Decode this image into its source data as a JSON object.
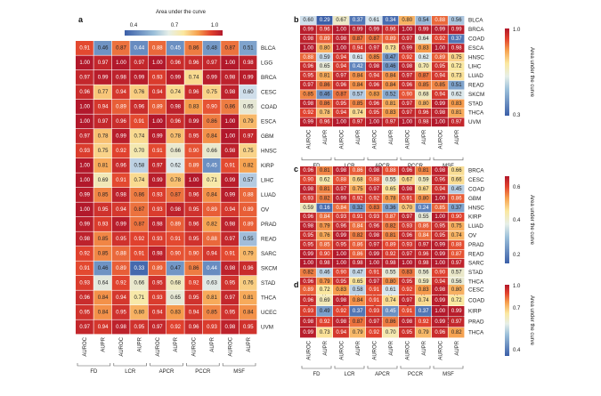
{
  "colors": {
    "scale": [
      "#3b5fa8",
      "#7fa3cc",
      "#dce8ef",
      "#fae8a0",
      "#f6a04e",
      "#e2432e",
      "#b2182b"
    ]
  },
  "groups": [
    "FD",
    "LCR",
    "APCR",
    "PCCR",
    "MSF"
  ],
  "metrics": [
    "AUROC",
    "AUPR"
  ],
  "chart_data": [
    {
      "panel": "a",
      "type": "heatmap",
      "colorbar": {
        "title": "Area under the curve",
        "ticks": [
          "0.4",
          "0.7",
          "1.0"
        ],
        "range": [
          0.3,
          1.0
        ],
        "orientation": "horizontal",
        "position": "top"
      },
      "rows": [
        "BLCA",
        "LGG",
        "BRCA",
        "CESC",
        "COAD",
        "ESCA",
        "GBM",
        "HNSC",
        "KIRP",
        "LIHC",
        "LUAD",
        "OV",
        "PRAD",
        "READ",
        "SARC",
        "SKCM",
        "STAD",
        "THCA",
        "UCEC",
        "UVM"
      ],
      "values": [
        [
          0.91,
          0.46,
          0.87,
          0.44,
          0.88,
          0.45,
          0.86,
          0.48,
          0.87,
          0.51
        ],
        [
          1.0,
          0.97,
          1.0,
          0.97,
          1.0,
          0.96,
          0.96,
          0.97,
          1.0,
          0.98
        ],
        [
          0.97,
          0.99,
          0.98,
          0.99,
          0.93,
          0.99,
          0.74,
          0.99,
          0.98,
          0.99
        ],
        [
          0.96,
          0.77,
          0.94,
          0.76,
          0.94,
          0.74,
          0.96,
          0.75,
          0.98,
          0.6
        ],
        [
          1.0,
          0.94,
          0.89,
          0.96,
          0.89,
          0.98,
          0.83,
          0.9,
          0.86,
          0.65
        ],
        [
          1.0,
          0.97,
          0.96,
          0.91,
          1.0,
          0.96,
          0.99,
          0.86,
          1.0,
          0.79
        ],
        [
          0.97,
          0.78,
          0.99,
          0.74,
          0.99,
          0.78,
          0.95,
          0.84,
          1.0,
          0.97
        ],
        [
          0.93,
          0.75,
          0.92,
          0.7,
          0.91,
          0.66,
          0.9,
          0.66,
          0.98,
          0.75
        ],
        [
          1.0,
          0.81,
          0.96,
          0.58,
          0.97,
          0.62,
          0.89,
          0.45,
          0.91,
          0.82
        ],
        [
          1.0,
          0.69,
          0.91,
          0.74,
          0.99,
          0.78,
          1.0,
          0.71,
          0.99,
          0.57
        ],
        [
          0.99,
          0.85,
          0.98,
          0.86,
          0.93,
          0.87,
          0.96,
          0.84,
          0.99,
          0.88
        ],
        [
          1.0,
          0.95,
          0.94,
          0.87,
          0.93,
          0.98,
          0.95,
          0.89,
          0.94,
          0.89
        ],
        [
          0.99,
          0.93,
          0.99,
          0.87,
          0.98,
          0.89,
          0.96,
          0.82,
          0.98,
          0.89
        ],
        [
          0.98,
          0.85,
          0.95,
          0.92,
          0.93,
          0.91,
          0.95,
          0.88,
          0.97,
          0.55
        ],
        [
          0.92,
          0.85,
          0.88,
          0.91,
          0.98,
          0.9,
          0.9,
          0.94,
          0.91,
          0.79
        ],
        [
          0.91,
          0.46,
          0.89,
          0.33,
          0.89,
          0.47,
          0.86,
          0.44,
          0.98,
          0.96
        ],
        [
          0.93,
          0.64,
          0.92,
          0.66,
          0.95,
          0.68,
          0.92,
          0.63,
          0.95,
          0.76
        ],
        [
          0.96,
          0.84,
          0.94,
          0.71,
          0.93,
          0.65,
          0.95,
          0.81,
          0.97,
          0.81
        ],
        [
          0.95,
          0.84,
          0.95,
          0.8,
          0.94,
          0.83,
          0.94,
          0.85,
          0.95,
          0.84
        ],
        [
          0.97,
          0.94,
          0.98,
          0.95,
          0.97,
          0.92,
          0.96,
          0.93,
          0.98,
          0.95
        ]
      ]
    },
    {
      "panel": "b",
      "type": "heatmap",
      "colorbar": {
        "title": "Area under the curve",
        "ticks": [
          "1.0",
          "0.3"
        ],
        "range": [
          0.3,
          1.0
        ],
        "orientation": "vertical",
        "position": "right"
      },
      "rows": [
        "BLCA",
        "BRCA",
        "COAD",
        "ESCA",
        "HNSC",
        "LIHC",
        "LUAD",
        "READ",
        "SKCM",
        "STAD",
        "THCA",
        "UVM"
      ],
      "values": [
        [
          0.6,
          0.29,
          0.67,
          0.37,
          0.61,
          0.34,
          0.8,
          0.54,
          0.88,
          0.56
        ],
        [
          0.99,
          0.96,
          1.0,
          0.99,
          0.99,
          0.96,
          1.0,
          0.99,
          0.99,
          0.99
        ],
        [
          0.98,
          0.89,
          0.98,
          0.87,
          0.87,
          0.89,
          0.97,
          0.64,
          0.92,
          0.37
        ],
        [
          1.0,
          0.8,
          1.0,
          0.94,
          0.97,
          0.73,
          0.99,
          0.83,
          1.0,
          0.98
        ],
        [
          0.88,
          0.59,
          0.94,
          0.61,
          0.85,
          0.47,
          0.92,
          0.62,
          0.89,
          0.75
        ],
        [
          0.96,
          0.65,
          0.94,
          0.42,
          0.98,
          0.46,
          0.98,
          0.7,
          0.95,
          0.72
        ],
        [
          0.95,
          0.81,
          0.97,
          0.84,
          0.94,
          0.84,
          0.97,
          0.87,
          0.94,
          0.73
        ],
        [
          0.97,
          0.86,
          0.96,
          0.84,
          0.96,
          0.84,
          0.96,
          0.85,
          0.85,
          0.51
        ],
        [
          0.85,
          0.46,
          0.87,
          0.57,
          0.83,
          0.52,
          0.9,
          0.68,
          0.94,
          0.62
        ],
        [
          0.98,
          0.86,
          0.95,
          0.85,
          0.96,
          0.81,
          0.97,
          0.8,
          0.99,
          0.83
        ],
        [
          0.92,
          0.78,
          0.94,
          0.74,
          0.95,
          0.83,
          0.97,
          0.96,
          0.98,
          0.81
        ],
        [
          0.99,
          0.96,
          1.0,
          0.97,
          1.0,
          0.97,
          1.0,
          0.98,
          1.0,
          0.97
        ]
      ]
    },
    {
      "panel": "c",
      "type": "heatmap",
      "colorbar": {
        "title": "Area under the curve",
        "ticks": [
          "0.6",
          "0.4",
          "0.2"
        ],
        "range": [
          0.1,
          1.0
        ],
        "orientation": "vertical",
        "position": "right"
      },
      "rows": [
        "BRCA",
        "CESC",
        "COAD",
        "GBM",
        "HNSC",
        "KIRP",
        "LUAD",
        "OV",
        "PRAD",
        "READ",
        "SARC",
        "STAD",
        "THCA"
      ],
      "values": [
        [
          0.96,
          0.81,
          0.98,
          0.86,
          0.98,
          0.88,
          0.96,
          0.81,
          0.98,
          0.66
        ],
        [
          0.9,
          0.62,
          0.88,
          0.68,
          0.88,
          0.55,
          0.67,
          0.59,
          0.96,
          0.66
        ],
        [
          0.98,
          0.81,
          0.97,
          0.75,
          0.97,
          0.65,
          0.98,
          0.67,
          0.94,
          0.45
        ],
        [
          0.93,
          0.82,
          0.99,
          0.92,
          0.92,
          0.78,
          0.91,
          0.8,
          1.0,
          0.86
        ],
        [
          0.59,
          0.16,
          0.84,
          0.32,
          0.83,
          0.36,
          0.7,
          0.24,
          0.85,
          0.37
        ],
        [
          0.96,
          0.84,
          0.93,
          0.91,
          0.93,
          0.87,
          0.97,
          0.55,
          1.0,
          0.9
        ],
        [
          0.98,
          0.79,
          0.96,
          0.84,
          0.96,
          0.82,
          0.93,
          0.86,
          0.95,
          0.75
        ],
        [
          0.95,
          0.76,
          0.99,
          0.82,
          0.98,
          0.81,
          0.96,
          0.84,
          0.95,
          0.74
        ],
        [
          0.95,
          0.85,
          0.95,
          0.86,
          0.97,
          0.89,
          0.93,
          0.97,
          0.99,
          0.88
        ],
        [
          0.99,
          0.9,
          1.0,
          0.86,
          0.99,
          0.92,
          0.97,
          0.96,
          0.99,
          0.87
        ],
        [
          1.0,
          0.98,
          1.0,
          0.98,
          1.0,
          0.98,
          1.0,
          0.98,
          1.0,
          0.97
        ],
        [
          0.82,
          0.46,
          0.9,
          0.47,
          0.91,
          0.55,
          0.83,
          0.56,
          0.9,
          0.57
        ],
        [
          0.96,
          0.79,
          0.95,
          0.65,
          0.97,
          0.8,
          0.95,
          0.59,
          0.94,
          0.56
        ]
      ]
    },
    {
      "panel": "d",
      "type": "heatmap",
      "colorbar": {
        "title": "Area under the curve",
        "ticks": [
          "1.0",
          "0.7",
          "0.4"
        ],
        "range": [
          0.3,
          1.0
        ],
        "orientation": "vertical",
        "position": "right"
      },
      "rows": [
        "CESC",
        "COAD",
        "KIRP",
        "PRAD",
        "THCA"
      ],
      "values": [
        [
          0.89,
          0.72,
          0.83,
          0.58,
          0.91,
          0.61,
          0.92,
          0.83,
          0.98,
          0.8
        ],
        [
          0.96,
          0.69,
          0.98,
          0.84,
          0.91,
          0.74,
          0.97,
          0.74,
          0.99,
          0.72
        ],
        [
          0.93,
          0.49,
          0.92,
          0.37,
          0.93,
          0.45,
          0.91,
          0.37,
          1.0,
          0.99
        ],
        [
          0.98,
          0.92,
          0.98,
          0.87,
          0.97,
          0.86,
          0.98,
          0.92,
          0.99,
          0.97
        ],
        [
          0.99,
          0.73,
          0.94,
          0.79,
          0.92,
          0.7,
          0.95,
          0.79,
          0.96,
          0.82
        ]
      ]
    }
  ]
}
